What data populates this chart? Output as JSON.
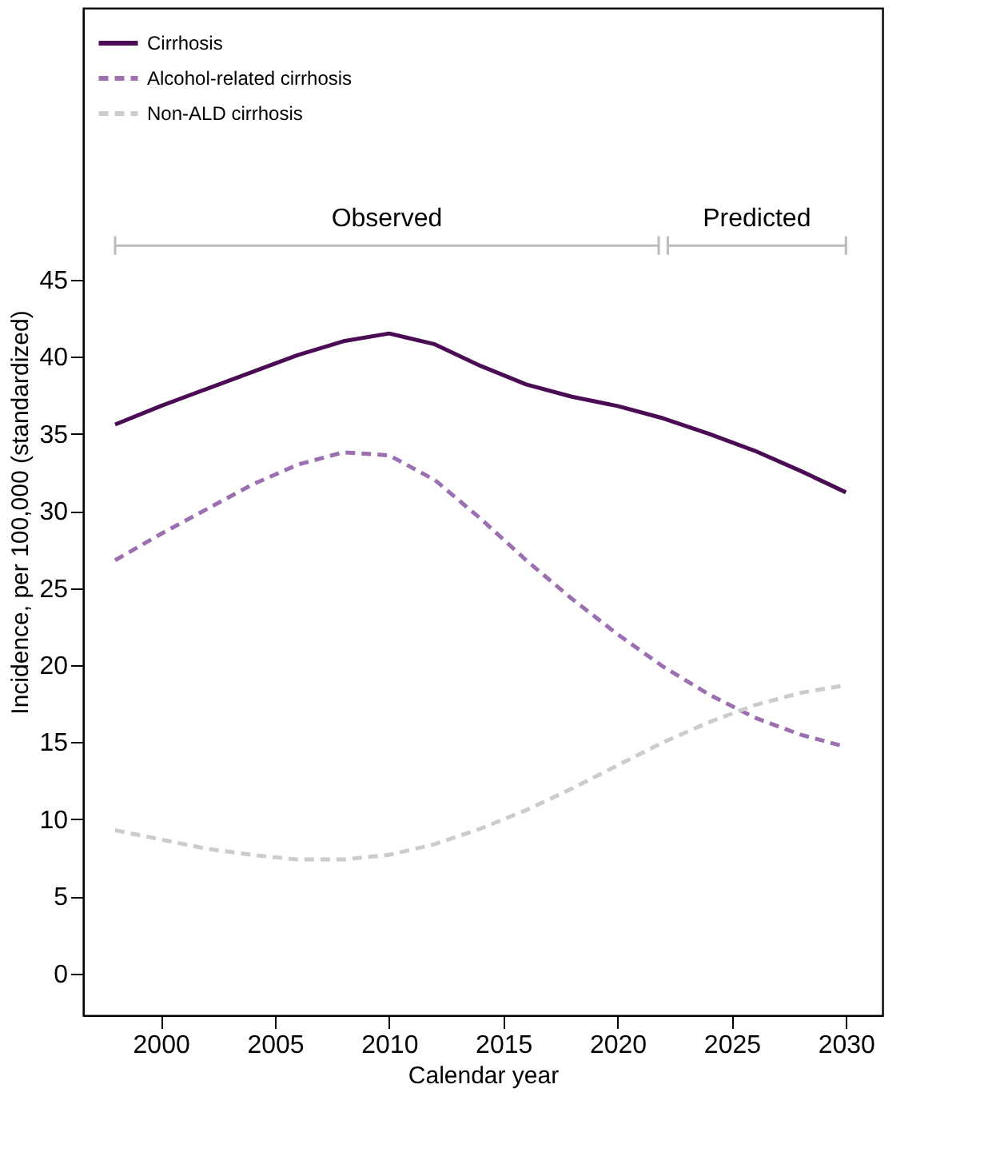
{
  "chart_data": {
    "type": "line",
    "xlabel": "Calendar year",
    "ylabel": "Incidence, per 100,000 (standardized)",
    "x": [
      1998,
      2000,
      2002,
      2004,
      2006,
      2008,
      2010,
      2012,
      2014,
      2016,
      2018,
      2020,
      2022,
      2024,
      2026,
      2028,
      2030
    ],
    "series": [
      {
        "name": "Cirrhosis",
        "color": "#4b0c55",
        "line_style": "solid",
        "values": [
          35.6,
          36.8,
          37.9,
          39.0,
          40.1,
          41.0,
          41.5,
          40.8,
          39.4,
          38.2,
          37.4,
          36.8,
          36.0,
          35.0,
          33.9,
          32.6,
          31.2
        ]
      },
      {
        "name": "Alcohol-related cirrhosis",
        "color": "#9b6fb0",
        "line_style": "dashed",
        "values": [
          26.8,
          28.5,
          30.1,
          31.7,
          33.0,
          33.8,
          33.6,
          32.0,
          29.5,
          26.8,
          24.3,
          22.0,
          19.9,
          18.1,
          16.6,
          15.5,
          14.7
        ]
      },
      {
        "name": "Non-ALD cirrhosis",
        "color": "#cccccc",
        "line_style": "dashed",
        "values": [
          9.3,
          8.7,
          8.1,
          7.7,
          7.4,
          7.4,
          7.7,
          8.4,
          9.4,
          10.6,
          12.0,
          13.5,
          15.0,
          16.3,
          17.4,
          18.2,
          18.7
        ]
      },
      {
        "type": "line",
        "color": "#bbbbbb",
        "line_style": "solid",
        "x": [
          1998,
          2021.8
        ],
        "values": [
          47.2,
          47.2
        ],
        "errors": [
          0.6,
          0.6
        ]
      },
      {
        "type": "line",
        "color": "#bbbbbb",
        "line_style": "solid",
        "x": [
          2022.2,
          2030
        ],
        "values": [
          47.2,
          47.2
        ],
        "errors": [
          0.6,
          0.6
        ]
      }
    ],
    "annotations": [
      {
        "text": "Observed",
        "x": 2009.9,
        "y": 47.2
      },
      {
        "text": "Predicted",
        "x": 2026.1,
        "y": 47.2
      }
    ],
    "xlim": [
      1996.6,
      2031.6
    ],
    "xticks": [
      2000,
      2005,
      2010,
      2015,
      2020,
      2025,
      2030
    ],
    "ylim": [
      -2.7,
      62.6
    ],
    "yticks": [
      0,
      5,
      10,
      15,
      20,
      25,
      30,
      35,
      40,
      45
    ],
    "legend": "top left",
    "grid": false
  }
}
